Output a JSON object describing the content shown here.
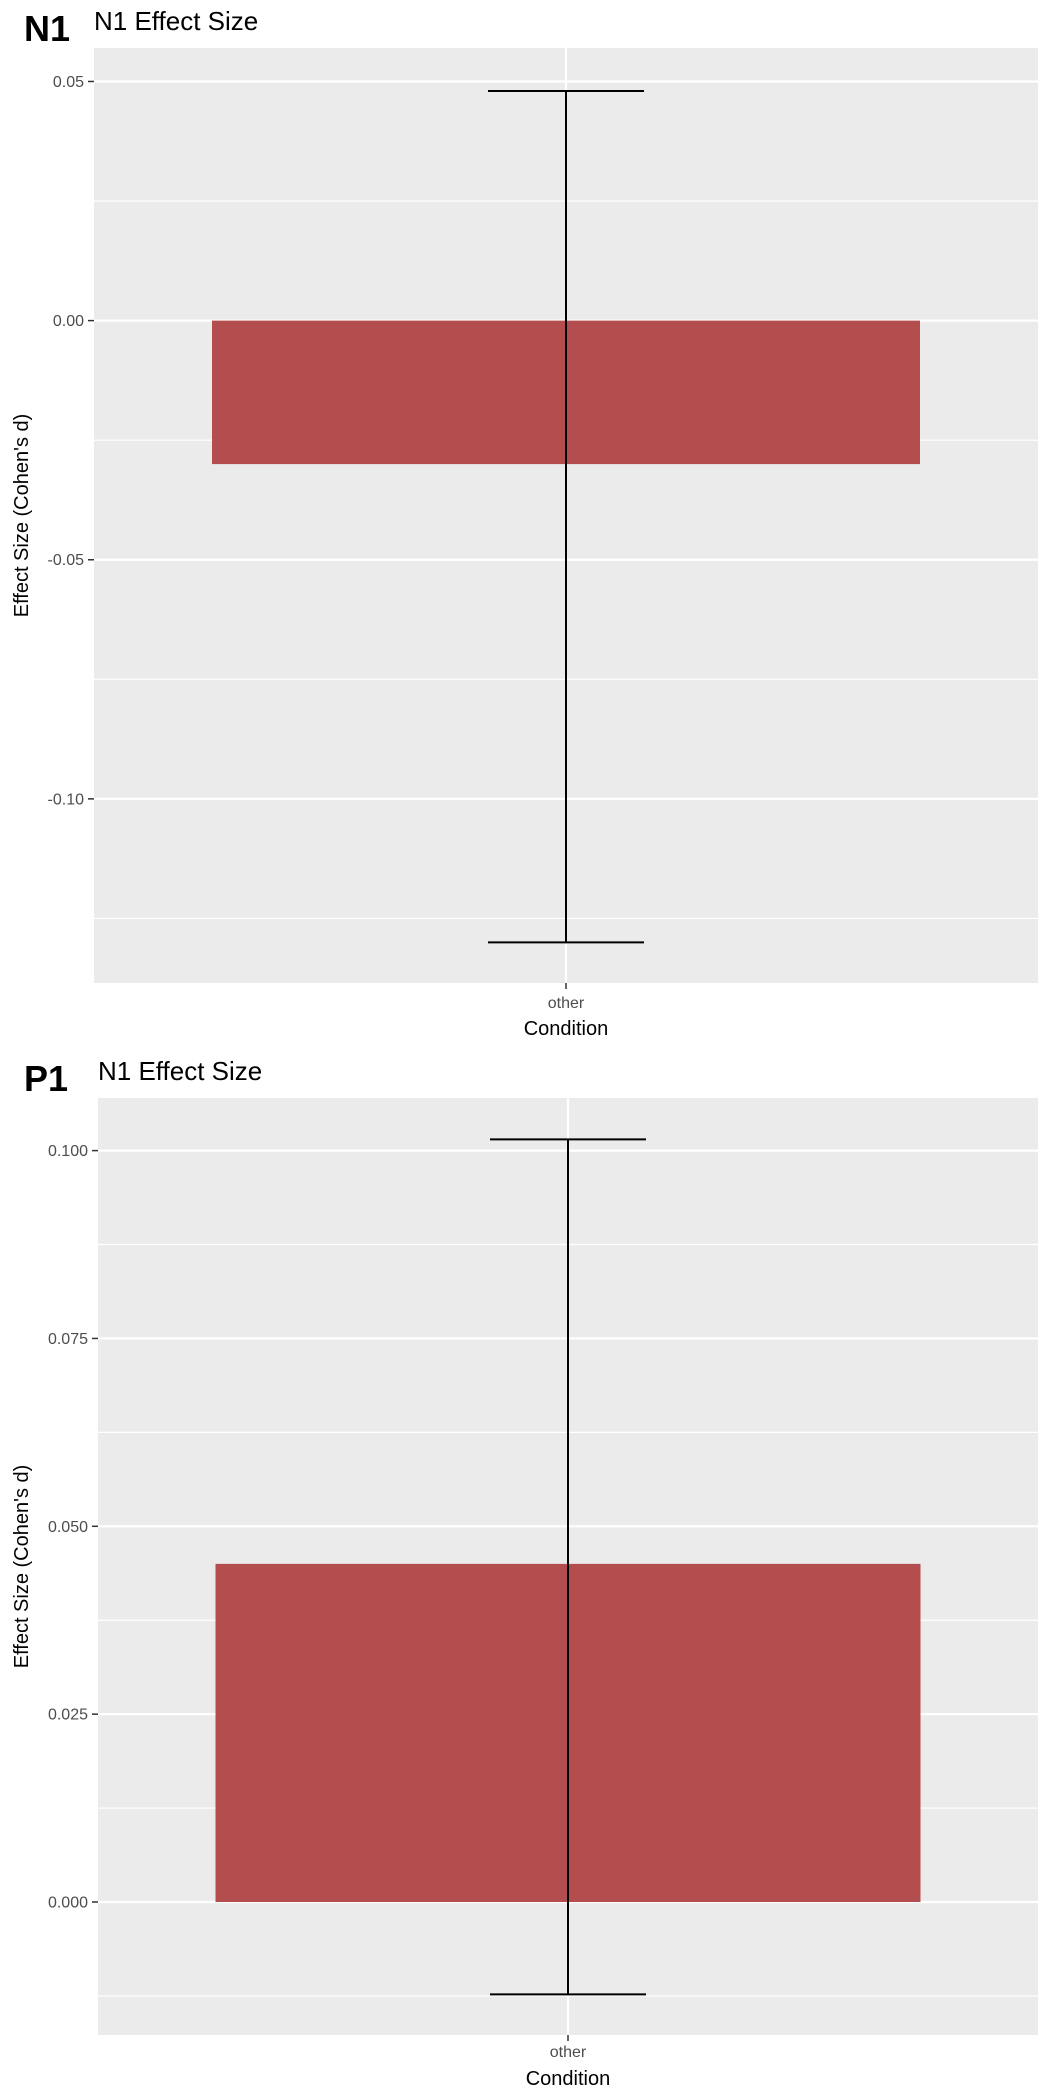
{
  "chart_data": [
    {
      "type": "bar",
      "panel_tag": "N1",
      "title": "N1 Effect Size",
      "xlabel": "Condition",
      "ylabel": "Effect Size (Cohen's d)",
      "categories": [
        "other"
      ],
      "values": [
        -0.03
      ],
      "error_bars": [
        {
          "low": -0.13,
          "high": 0.048
        }
      ],
      "ylim": [
        -0.1385,
        0.057
      ],
      "yticks": [
        0.05,
        0.0,
        -0.05,
        -0.1
      ],
      "ytick_labels": [
        "0.05",
        "0.00",
        "-0.05",
        "-0.10"
      ],
      "grid": true,
      "bar_color": "#B24A4A",
      "panel_background": "#EBEBEB",
      "grid_color": "#FFFFFF"
    },
    {
      "type": "bar",
      "panel_tag": "P1",
      "title": "N1 Effect Size",
      "xlabel": "Condition",
      "ylabel": "Effect Size (Cohen's d)",
      "categories": [
        "other"
      ],
      "values": [
        0.045
      ],
      "error_bars": [
        {
          "low": -0.0123,
          "high": 0.1015
        }
      ],
      "ylim": [
        -0.0177,
        0.107
      ],
      "yticks": [
        0.1,
        0.075,
        0.05,
        0.025,
        0.0
      ],
      "ytick_labels": [
        "0.100",
        "0.075",
        "0.050",
        "0.025",
        "0.000"
      ],
      "grid": true,
      "bar_color": "#B24A4A",
      "panel_background": "#EBEBEB",
      "grid_color": "#FFFFFF"
    }
  ]
}
